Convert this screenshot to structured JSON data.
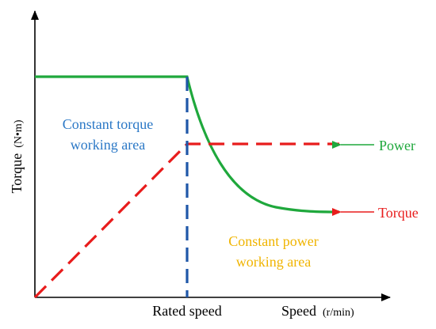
{
  "axes": {
    "y_label_main": "Torque",
    "y_label_unit": "(N•m)",
    "x_label_main": "Speed",
    "x_label_unit": "(r/min)",
    "x_tick_label": "Rated speed"
  },
  "regions": {
    "constant_torque_line1": "Constant torque",
    "constant_torque_line2": "working area",
    "constant_power_line1": "Constant power",
    "constant_power_line2": "working area"
  },
  "legend": {
    "power_label": "Power",
    "torque_label": "Torque"
  },
  "colors": {
    "power_curve": "#1fa83c",
    "torque_curve": "#e81c1c",
    "rated_divider": "#1f57a8",
    "constant_torque_text": "#2b78c6",
    "constant_power_text": "#f0b400",
    "axis": "#000000"
  }
}
